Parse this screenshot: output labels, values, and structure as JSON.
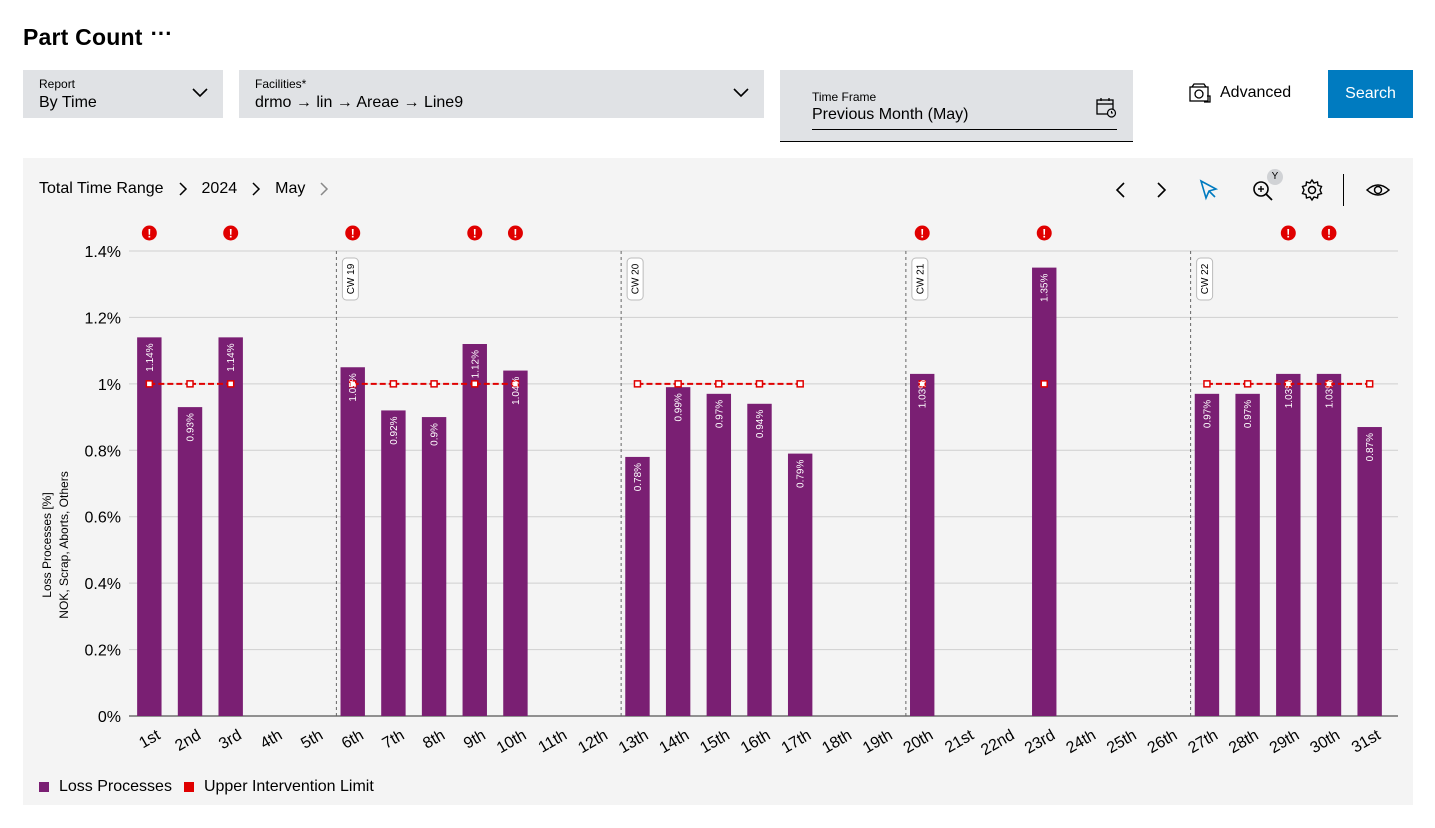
{
  "page": {
    "title": "Part Count",
    "more_label": "···"
  },
  "filters": {
    "report": {
      "label": "Report",
      "value": "By Time"
    },
    "facilities": {
      "label": "Facilities*",
      "value": "drmo → lin → Areae → Line9"
    },
    "time_frame": {
      "label": "Time Frame",
      "value": "Previous Month (May)"
    },
    "advanced_label": "Advanced",
    "search_label": "Search"
  },
  "breadcrumb": [
    "Total Time Range",
    "2024",
    "May"
  ],
  "toolbar": {
    "zoom_badge": "Y"
  },
  "colors": {
    "bar": "#7a1f73",
    "limit": "#e00000",
    "accent": "#007bc0",
    "alert": "#e00000"
  },
  "chart_data": {
    "type": "bar",
    "title": "",
    "ylabel_line1": "Loss Processes [%]",
    "ylabel_line2": "NOK, Scrap, Aborts, Others",
    "ylim": [
      0,
      1.4
    ],
    "yticks": [
      0,
      0.2,
      0.4,
      0.6,
      0.8,
      1.0,
      1.2,
      1.4
    ],
    "ytick_labels": [
      "0%",
      "0.2%",
      "0.4%",
      "0.6%",
      "0.8%",
      "1%",
      "1.2%",
      "1.4%"
    ],
    "categories": [
      "1st",
      "2nd",
      "3rd",
      "4th",
      "5th",
      "6th",
      "7th",
      "8th",
      "9th",
      "10th",
      "11th",
      "12th",
      "13th",
      "14th",
      "15th",
      "16th",
      "17th",
      "18th",
      "19th",
      "20th",
      "21st",
      "22nd",
      "23rd",
      "24th",
      "25th",
      "26th",
      "27th",
      "28th",
      "29th",
      "30th",
      "31st"
    ],
    "series": [
      {
        "name": "Loss Processes",
        "values": [
          1.14,
          0.93,
          1.14,
          null,
          null,
          1.05,
          0.92,
          0.9,
          1.12,
          1.04,
          null,
          null,
          0.78,
          0.99,
          0.97,
          0.94,
          0.79,
          null,
          null,
          1.03,
          null,
          null,
          1.35,
          null,
          null,
          null,
          0.97,
          0.97,
          1.03,
          1.03,
          0.87
        ],
        "labels": [
          "1.14%",
          "0.93%",
          "1.14%",
          "",
          "",
          "1.05%",
          "0.92%",
          "0.9%",
          "1.12%",
          "1.04%",
          "",
          "",
          "0.78%",
          "0.99%",
          "0.97%",
          "0.94%",
          "0.79%",
          "",
          "",
          "1.03%",
          "",
          "",
          "1.35%",
          "",
          "",
          "",
          "0.97%",
          "0.97%",
          "1.03%",
          "1.03%",
          "0.87%"
        ]
      },
      {
        "name": "Upper Intervention Limit",
        "values": [
          1.0,
          1.0,
          1.0,
          null,
          null,
          1.0,
          1.0,
          1.0,
          1.0,
          1.0,
          null,
          null,
          1.0,
          1.0,
          1.0,
          1.0,
          1.0,
          null,
          null,
          1.0,
          null,
          null,
          1.0,
          null,
          null,
          null,
          1.0,
          1.0,
          1.0,
          1.0,
          1.0
        ]
      }
    ],
    "alerts": [
      "1st",
      "3rd",
      "6th",
      "9th",
      "10th",
      "20th",
      "23rd",
      "29th",
      "30th"
    ],
    "week_markers": [
      {
        "label": "CW 19",
        "at": "6th"
      },
      {
        "label": "CW 20",
        "at": "13th"
      },
      {
        "label": "CW 21",
        "at": "20th"
      },
      {
        "label": "CW 22",
        "at": "27th"
      }
    ],
    "legend": [
      "Loss Processes",
      "Upper Intervention Limit"
    ]
  }
}
